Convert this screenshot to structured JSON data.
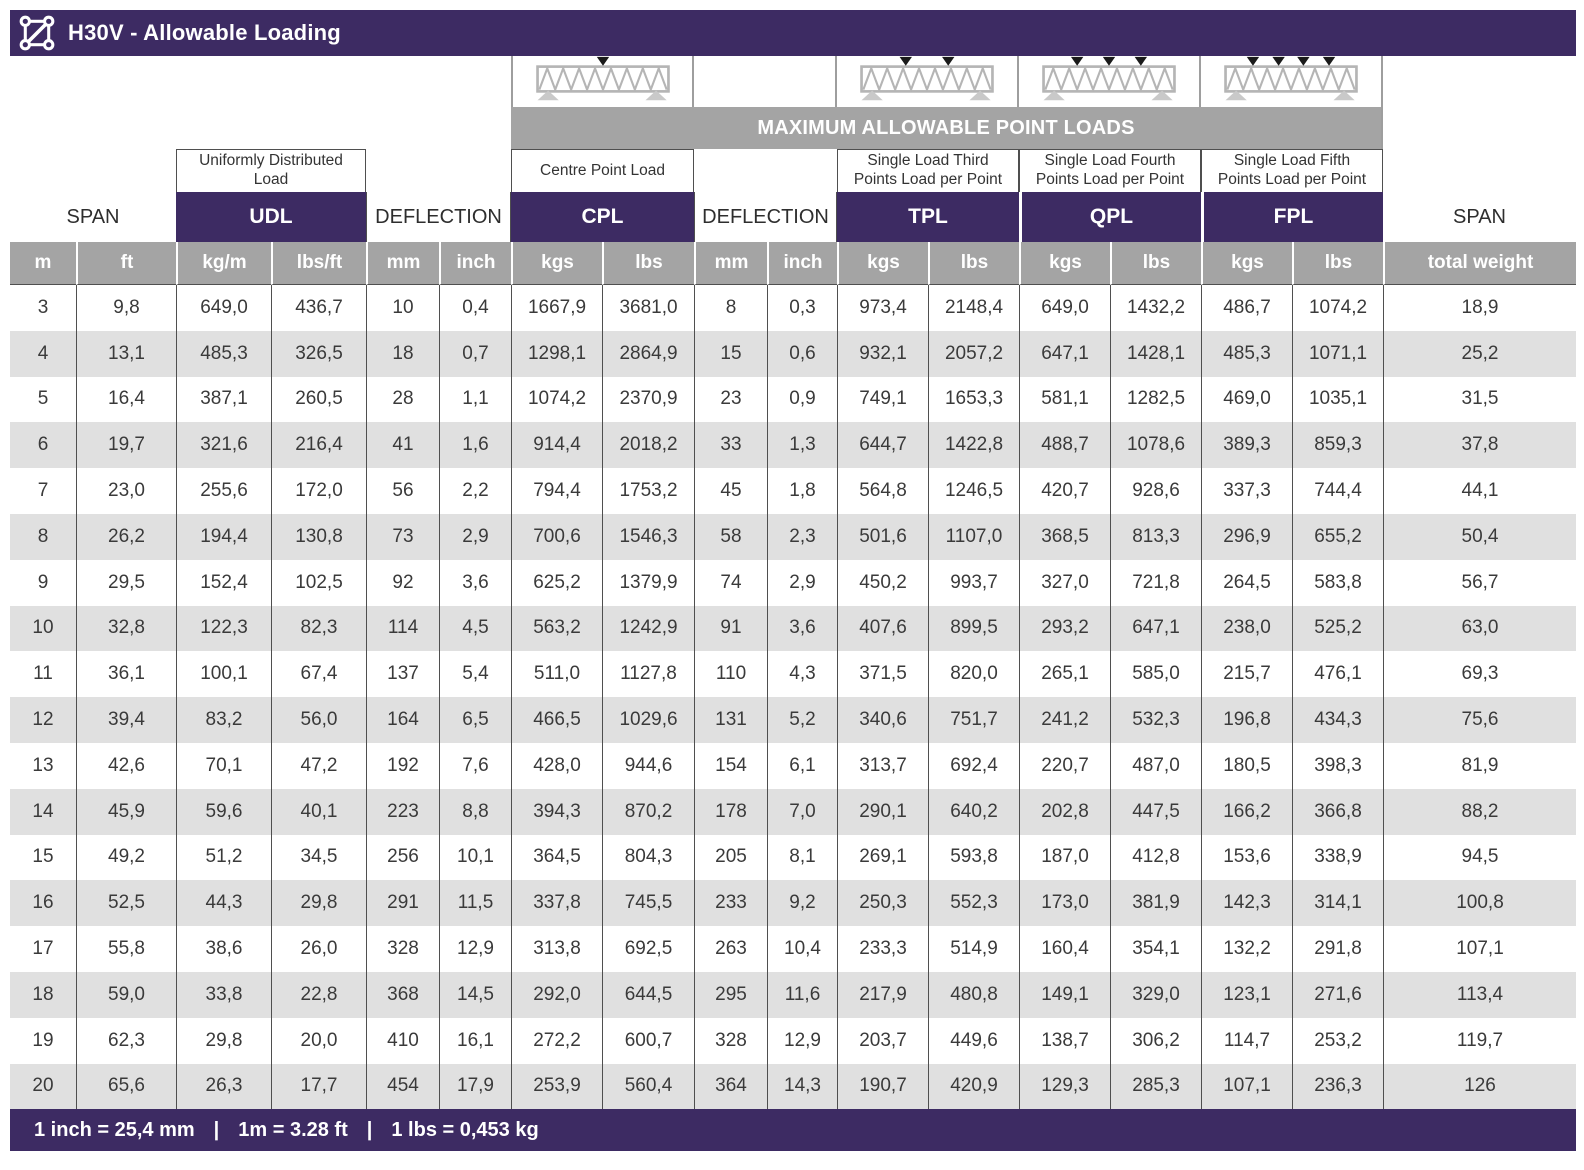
{
  "title": "H30V - Allowable Loading",
  "banner": "MAXIMUM ALLOWABLE POINT LOADS",
  "colors": {
    "purple": "#3d2b63",
    "header_gray": "#a4a4a4",
    "row_alt_gray": "#e0e0e0",
    "line_dark": "#4f4f4f"
  },
  "footer": {
    "separator": "|",
    "conversions": [
      "1 inch = 25,4 mm",
      "1m = 3.28 ft",
      "1 lbs = 0,453 kg"
    ]
  },
  "table": {
    "groups": {
      "span_left": {
        "label": "SPAN"
      },
      "udl": {
        "desc": "Uniformly Distributed Load",
        "label": "UDL"
      },
      "deflection1": {
        "label": "DEFLECTION"
      },
      "cpl": {
        "desc": "Centre Point Load",
        "label": "CPL"
      },
      "deflection2": {
        "label": "DEFLECTION"
      },
      "tpl": {
        "desc": "Single Load Third Points Load per Point",
        "label": "TPL"
      },
      "qpl": {
        "desc": "Single Load Fourth Points Load per Point",
        "label": "QPL"
      },
      "fpl": {
        "desc": "Single Load Fifth Points Load per Point",
        "label": "FPL"
      },
      "span_right": {
        "label": "SPAN"
      }
    },
    "units": [
      "m",
      "ft",
      "kg/m",
      "lbs/ft",
      "mm",
      "inch",
      "kgs",
      "lbs",
      "mm",
      "inch",
      "kgs",
      "lbs",
      "kgs",
      "lbs",
      "kgs",
      "lbs",
      "total weight"
    ],
    "col_keys": [
      "span-m",
      "span-ft",
      "udl-kg-m",
      "udl-lbs-ft",
      "defl-mm",
      "defl-inch",
      "cpl-kgs",
      "cpl-lbs",
      "defl2-mm",
      "defl2-inch",
      "tpl-kgs",
      "tpl-lbs",
      "qpl-kgs",
      "qpl-lbs",
      "fpl-kgs",
      "fpl-lbs",
      "total-weight"
    ],
    "rows": [
      [
        "3",
        "9,8",
        "649,0",
        "436,7",
        "10",
        "0,4",
        "1667,9",
        "3681,0",
        "8",
        "0,3",
        "973,4",
        "2148,4",
        "649,0",
        "1432,2",
        "486,7",
        "1074,2",
        "18,9"
      ],
      [
        "4",
        "13,1",
        "485,3",
        "326,5",
        "18",
        "0,7",
        "1298,1",
        "2864,9",
        "15",
        "0,6",
        "932,1",
        "2057,2",
        "647,1",
        "1428,1",
        "485,3",
        "1071,1",
        "25,2"
      ],
      [
        "5",
        "16,4",
        "387,1",
        "260,5",
        "28",
        "1,1",
        "1074,2",
        "2370,9",
        "23",
        "0,9",
        "749,1",
        "1653,3",
        "581,1",
        "1282,5",
        "469,0",
        "1035,1",
        "31,5"
      ],
      [
        "6",
        "19,7",
        "321,6",
        "216,4",
        "41",
        "1,6",
        "914,4",
        "2018,2",
        "33",
        "1,3",
        "644,7",
        "1422,8",
        "488,7",
        "1078,6",
        "389,3",
        "859,3",
        "37,8"
      ],
      [
        "7",
        "23,0",
        "255,6",
        "172,0",
        "56",
        "2,2",
        "794,4",
        "1753,2",
        "45",
        "1,8",
        "564,8",
        "1246,5",
        "420,7",
        "928,6",
        "337,3",
        "744,4",
        "44,1"
      ],
      [
        "8",
        "26,2",
        "194,4",
        "130,8",
        "73",
        "2,9",
        "700,6",
        "1546,3",
        "58",
        "2,3",
        "501,6",
        "1107,0",
        "368,5",
        "813,3",
        "296,9",
        "655,2",
        "50,4"
      ],
      [
        "9",
        "29,5",
        "152,4",
        "102,5",
        "92",
        "3,6",
        "625,2",
        "1379,9",
        "74",
        "2,9",
        "450,2",
        "993,7",
        "327,0",
        "721,8",
        "264,5",
        "583,8",
        "56,7"
      ],
      [
        "10",
        "32,8",
        "122,3",
        "82,3",
        "114",
        "4,5",
        "563,2",
        "1242,9",
        "91",
        "3,6",
        "407,6",
        "899,5",
        "293,2",
        "647,1",
        "238,0",
        "525,2",
        "63,0"
      ],
      [
        "11",
        "36,1",
        "100,1",
        "67,4",
        "137",
        "5,4",
        "511,0",
        "1127,8",
        "110",
        "4,3",
        "371,5",
        "820,0",
        "265,1",
        "585,0",
        "215,7",
        "476,1",
        "69,3"
      ],
      [
        "12",
        "39,4",
        "83,2",
        "56,0",
        "164",
        "6,5",
        "466,5",
        "1029,6",
        "131",
        "5,2",
        "340,6",
        "751,7",
        "241,2",
        "532,3",
        "196,8",
        "434,3",
        "75,6"
      ],
      [
        "13",
        "42,6",
        "70,1",
        "47,2",
        "192",
        "7,6",
        "428,0",
        "944,6",
        "154",
        "6,1",
        "313,7",
        "692,4",
        "220,7",
        "487,0",
        "180,5",
        "398,3",
        "81,9"
      ],
      [
        "14",
        "45,9",
        "59,6",
        "40,1",
        "223",
        "8,8",
        "394,3",
        "870,2",
        "178",
        "7,0",
        "290,1",
        "640,2",
        "202,8",
        "447,5",
        "166,2",
        "366,8",
        "88,2"
      ],
      [
        "15",
        "49,2",
        "51,2",
        "34,5",
        "256",
        "10,1",
        "364,5",
        "804,3",
        "205",
        "8,1",
        "269,1",
        "593,8",
        "187,0",
        "412,8",
        "153,6",
        "338,9",
        "94,5"
      ],
      [
        "16",
        "52,5",
        "44,3",
        "29,8",
        "291",
        "11,5",
        "337,8",
        "745,5",
        "233",
        "9,2",
        "250,3",
        "552,3",
        "173,0",
        "381,9",
        "142,3",
        "314,1",
        "100,8"
      ],
      [
        "17",
        "55,8",
        "38,6",
        "26,0",
        "328",
        "12,9",
        "313,8",
        "692,5",
        "263",
        "10,4",
        "233,3",
        "514,9",
        "160,4",
        "354,1",
        "132,2",
        "291,8",
        "107,1"
      ],
      [
        "18",
        "59,0",
        "33,8",
        "22,8",
        "368",
        "14,5",
        "292,0",
        "644,5",
        "295",
        "11,6",
        "217,9",
        "480,8",
        "149,1",
        "329,0",
        "123,1",
        "271,6",
        "113,4"
      ],
      [
        "19",
        "62,3",
        "29,8",
        "20,0",
        "410",
        "16,1",
        "272,2",
        "600,7",
        "328",
        "12,9",
        "203,7",
        "449,6",
        "138,7",
        "306,2",
        "114,7",
        "253,2",
        "119,7"
      ],
      [
        "20",
        "65,6",
        "26,3",
        "17,7",
        "454",
        "17,9",
        "253,9",
        "560,4",
        "364",
        "14,3",
        "190,7",
        "420,9",
        "129,3",
        "285,3",
        "107,1",
        "236,3",
        "126"
      ]
    ]
  }
}
